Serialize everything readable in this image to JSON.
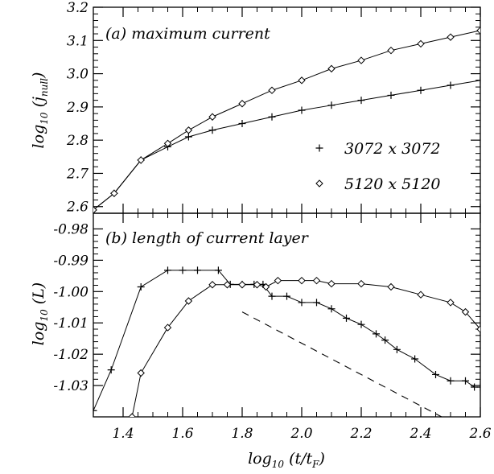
{
  "chart_data": [
    {
      "type": "line",
      "panel_label": "(a) maximum current",
      "ylabel": {
        "base": "log",
        "sub1": "10",
        "rest": " (j",
        "sub2": "null",
        "end": ")"
      },
      "xlim": [
        1.3,
        2.6
      ],
      "ylim": [
        2.58,
        3.2
      ],
      "yticks": [
        2.6,
        2.7,
        2.8,
        2.9,
        3.0,
        3.1,
        3.2
      ],
      "ytick_labels": [
        "2.6",
        "2.7",
        "2.8",
        "2.9",
        "3.0",
        "3.1",
        "3.2"
      ],
      "legend_position": "right",
      "series": [
        {
          "name": "3072 x 3072",
          "marker": "plus",
          "points": [
            [
              1.3,
              2.59
            ],
            [
              1.37,
              2.64
            ],
            [
              1.46,
              2.74
            ],
            [
              1.55,
              2.78
            ],
            [
              1.62,
              2.81
            ],
            [
              1.7,
              2.83
            ],
            [
              1.8,
              2.85
            ],
            [
              1.9,
              2.87
            ],
            [
              2.0,
              2.89
            ],
            [
              2.1,
              2.905
            ],
            [
              2.2,
              2.92
            ],
            [
              2.3,
              2.935
            ],
            [
              2.4,
              2.95
            ],
            [
              2.5,
              2.965
            ],
            [
              2.6,
              2.98
            ]
          ]
        },
        {
          "name": "5120 x 5120",
          "marker": "diamond",
          "points": [
            [
              1.3,
              2.59
            ],
            [
              1.37,
              2.64
            ],
            [
              1.46,
              2.74
            ],
            [
              1.55,
              2.79
            ],
            [
              1.62,
              2.83
            ],
            [
              1.7,
              2.87
            ],
            [
              1.8,
              2.91
            ],
            [
              1.9,
              2.95
            ],
            [
              2.0,
              2.98
            ],
            [
              2.1,
              3.015
            ],
            [
              2.2,
              3.04
            ],
            [
              2.3,
              3.07
            ],
            [
              2.4,
              3.09
            ],
            [
              2.5,
              3.11
            ],
            [
              2.6,
              3.13
            ]
          ]
        }
      ]
    },
    {
      "type": "line",
      "panel_label": "(b) length of current layer",
      "ylabel": {
        "base": "log",
        "sub1": "10",
        "rest": " (L)"
      },
      "xlabel": {
        "base": "log",
        "sub1": "10",
        "rest": " (t/t",
        "sub2": "F",
        "end": ")"
      },
      "xlim": [
        1.3,
        2.6
      ],
      "ylim": [
        -1.04,
        -0.975
      ],
      "xticks": [
        1.4,
        1.6,
        1.8,
        2.0,
        2.2,
        2.4,
        2.6
      ],
      "xtick_labels": [
        "1.4",
        "1.6",
        "1.8",
        "2.0",
        "2.2",
        "2.4",
        "2.6"
      ],
      "yticks": [
        -0.98,
        -0.99,
        -1.0,
        -1.01,
        -1.02,
        -1.03
      ],
      "ytick_labels": [
        "-0.98",
        "-0.99",
        "-1.00",
        "-1.01",
        "-1.02",
        "-1.03"
      ],
      "series": [
        {
          "name": "3072 x 3072",
          "marker": "plus",
          "points": [
            [
              1.3,
              -1.038
            ],
            [
              1.36,
              -1.025
            ],
            [
              1.46,
              -0.9985
            ],
            [
              1.55,
              -0.9932
            ],
            [
              1.6,
              -0.9932
            ],
            [
              1.65,
              -0.9932
            ],
            [
              1.72,
              -0.9932
            ],
            [
              1.76,
              -0.9977
            ],
            [
              1.8,
              -0.9977
            ],
            [
              1.84,
              -0.9977
            ],
            [
              1.87,
              -0.9977
            ],
            [
              1.9,
              -1.0015
            ],
            [
              1.95,
              -1.0015
            ],
            [
              2.0,
              -1.0035
            ],
            [
              2.05,
              -1.0035
            ],
            [
              2.1,
              -1.0055
            ],
            [
              2.15,
              -1.0085
            ],
            [
              2.2,
              -1.0105
            ],
            [
              2.25,
              -1.0135
            ],
            [
              2.28,
              -1.0155
            ],
            [
              2.32,
              -1.0185
            ],
            [
              2.38,
              -1.0215
            ],
            [
              2.45,
              -1.0265
            ],
            [
              2.5,
              -1.0285
            ],
            [
              2.55,
              -1.0285
            ],
            [
              2.58,
              -1.0305
            ],
            [
              2.6,
              -1.0305
            ]
          ]
        },
        {
          "name": "5120 x 5120",
          "marker": "diamond",
          "points": [
            [
              1.43,
              -1.04
            ],
            [
              1.46,
              -1.026
            ],
            [
              1.55,
              -1.0115
            ],
            [
              1.62,
              -1.003
            ],
            [
              1.7,
              -0.9978
            ],
            [
              1.75,
              -0.9978
            ],
            [
              1.8,
              -0.9978
            ],
            [
              1.85,
              -0.9978
            ],
            [
              1.88,
              -0.9985
            ],
            [
              1.92,
              -0.9965
            ],
            [
              2.0,
              -0.9965
            ],
            [
              2.05,
              -0.9965
            ],
            [
              2.1,
              -0.9975
            ],
            [
              2.2,
              -0.9975
            ],
            [
              2.3,
              -0.9985
            ],
            [
              2.4,
              -1.001
            ],
            [
              2.5,
              -1.0035
            ],
            [
              2.55,
              -1.0065
            ],
            [
              2.6,
              -1.012
            ]
          ]
        },
        {
          "name": "",
          "style": "dashed",
          "points": [
            [
              1.8,
              -1.0065
            ],
            [
              2.47,
              -1.04
            ]
          ]
        }
      ],
      "legend": [
        {
          "label": "3072 x 3072",
          "marker": "plus"
        },
        {
          "label": "5120 x 5120",
          "marker": "diamond"
        }
      ]
    }
  ]
}
